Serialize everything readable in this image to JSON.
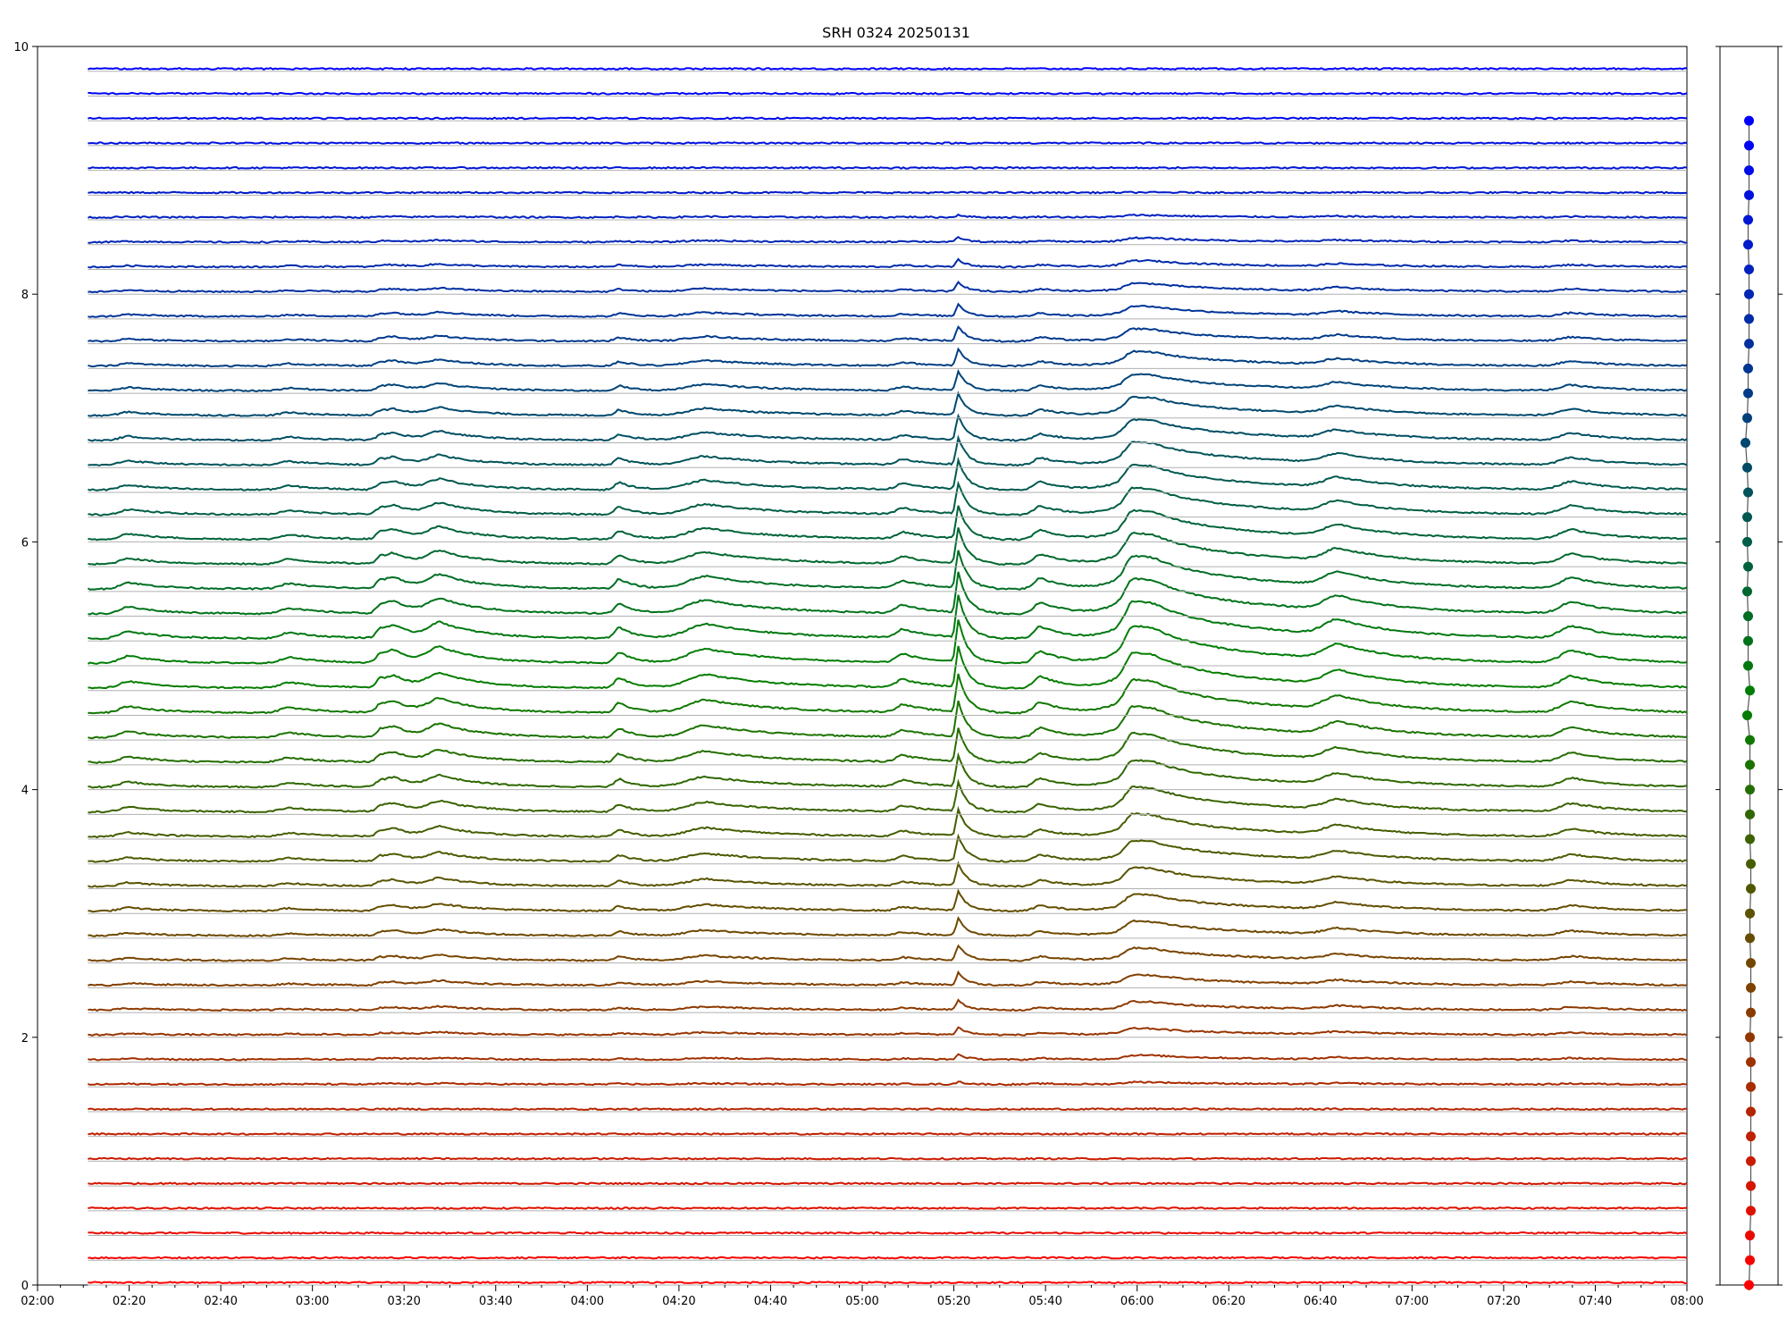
{
  "chart_data": {
    "type": "line",
    "title": "SRH 0324 20250131",
    "xlabel": "",
    "ylabel": "",
    "x_range": [
      "02:00",
      "08:00"
    ],
    "x_ticks": [
      "02:00",
      "02:20",
      "02:40",
      "03:00",
      "03:20",
      "03:40",
      "04:00",
      "04:20",
      "04:40",
      "05:00",
      "05:20",
      "05:40",
      "06:00",
      "06:20",
      "06:40",
      "07:00",
      "07:20",
      "07:40",
      "08:00"
    ],
    "ylim": [
      0,
      10
    ],
    "y_ticks": [
      0,
      2,
      4,
      6,
      8,
      10
    ],
    "grid": "horizontal baseline per trace",
    "legend": "none",
    "series_count": 50,
    "series_spacing": 0.2,
    "baseline_first": 0.0,
    "color_low": "#ff0000",
    "color_mid": "#008000",
    "color_high": "#0000ff",
    "baseline_color": "#b0b0b0",
    "x_start": "02:11",
    "x_end": "08:00",
    "events": [
      {
        "time": "02:20",
        "amp": 0.06,
        "width_min": 4
      },
      {
        "time": "02:55",
        "amp": 0.05,
        "width_min": 4
      },
      {
        "time": "03:15",
        "amp": 0.08,
        "width_min": 2
      },
      {
        "time": "03:18",
        "amp": 0.07,
        "width_min": 3
      },
      {
        "time": "03:28",
        "amp": 0.12,
        "width_min": 5
      },
      {
        "time": "04:07",
        "amp": 0.09,
        "width_min": 2
      },
      {
        "time": "04:26",
        "amp": 0.12,
        "width_min": 8
      },
      {
        "time": "05:09",
        "amp": 0.07,
        "width_min": 3
      },
      {
        "time": "05:21",
        "amp": 0.35,
        "width_min": 1
      },
      {
        "time": "05:39",
        "amp": 0.1,
        "width_min": 3
      },
      {
        "time": "05:59",
        "amp": 0.15,
        "width_min": 3
      },
      {
        "time": "06:04",
        "amp": 0.22,
        "width_min": 12
      },
      {
        "time": "06:44",
        "amp": 0.12,
        "width_min": 6
      },
      {
        "time": "07:35",
        "amp": 0.1,
        "width_min": 5
      }
    ],
    "side_panel": {
      "ylim": [
        0,
        10
      ],
      "points": [
        {
          "x": 0.0,
          "y": 0.0
        },
        {
          "x": 0.05,
          "y": 0.2
        },
        {
          "x": 0.05,
          "y": 0.4
        },
        {
          "x": 0.1,
          "y": 0.6
        },
        {
          "x": 0.1,
          "y": 0.8
        },
        {
          "x": 0.1,
          "y": 1.0
        },
        {
          "x": 0.1,
          "y": 1.2
        },
        {
          "x": 0.1,
          "y": 1.4
        },
        {
          "x": 0.1,
          "y": 1.6
        },
        {
          "x": 0.1,
          "y": 1.8
        },
        {
          "x": 0.05,
          "y": 2.0
        },
        {
          "x": 0.1,
          "y": 2.2
        },
        {
          "x": 0.1,
          "y": 2.4
        },
        {
          "x": 0.1,
          "y": 2.6
        },
        {
          "x": 0.05,
          "y": 2.8
        },
        {
          "x": 0.05,
          "y": 3.0
        },
        {
          "x": 0.1,
          "y": 3.2
        },
        {
          "x": 0.1,
          "y": 3.4
        },
        {
          "x": 0.05,
          "y": 3.6
        },
        {
          "x": 0.05,
          "y": 3.8
        },
        {
          "x": 0.05,
          "y": 4.0
        },
        {
          "x": 0.05,
          "y": 4.2
        },
        {
          "x": 0.05,
          "y": 4.4
        },
        {
          "x": -0.1,
          "y": 4.6
        },
        {
          "x": 0.05,
          "y": 4.8
        },
        {
          "x": -0.05,
          "y": 5.0
        },
        {
          "x": -0.05,
          "y": 5.2
        },
        {
          "x": -0.05,
          "y": 5.4
        },
        {
          "x": -0.1,
          "y": 5.6
        },
        {
          "x": -0.05,
          "y": 5.8
        },
        {
          "x": -0.1,
          "y": 6.0
        },
        {
          "x": -0.1,
          "y": 6.2
        },
        {
          "x": -0.05,
          "y": 6.4
        },
        {
          "x": -0.1,
          "y": 6.6
        },
        {
          "x": -0.2,
          "y": 6.8
        },
        {
          "x": -0.1,
          "y": 7.0
        },
        {
          "x": -0.05,
          "y": 7.2
        },
        {
          "x": -0.05,
          "y": 7.4
        },
        {
          "x": 0.0,
          "y": 7.6
        },
        {
          "x": 0.0,
          "y": 7.8
        },
        {
          "x": 0.0,
          "y": 8.0
        },
        {
          "x": 0.0,
          "y": 8.2
        },
        {
          "x": -0.05,
          "y": 8.4
        },
        {
          "x": -0.05,
          "y": 8.6
        },
        {
          "x": 0.0,
          "y": 8.8
        },
        {
          "x": 0.0,
          "y": 9.0
        },
        {
          "x": 0.0,
          "y": 9.2
        },
        {
          "x": 0.0,
          "y": 9.4
        }
      ]
    }
  }
}
